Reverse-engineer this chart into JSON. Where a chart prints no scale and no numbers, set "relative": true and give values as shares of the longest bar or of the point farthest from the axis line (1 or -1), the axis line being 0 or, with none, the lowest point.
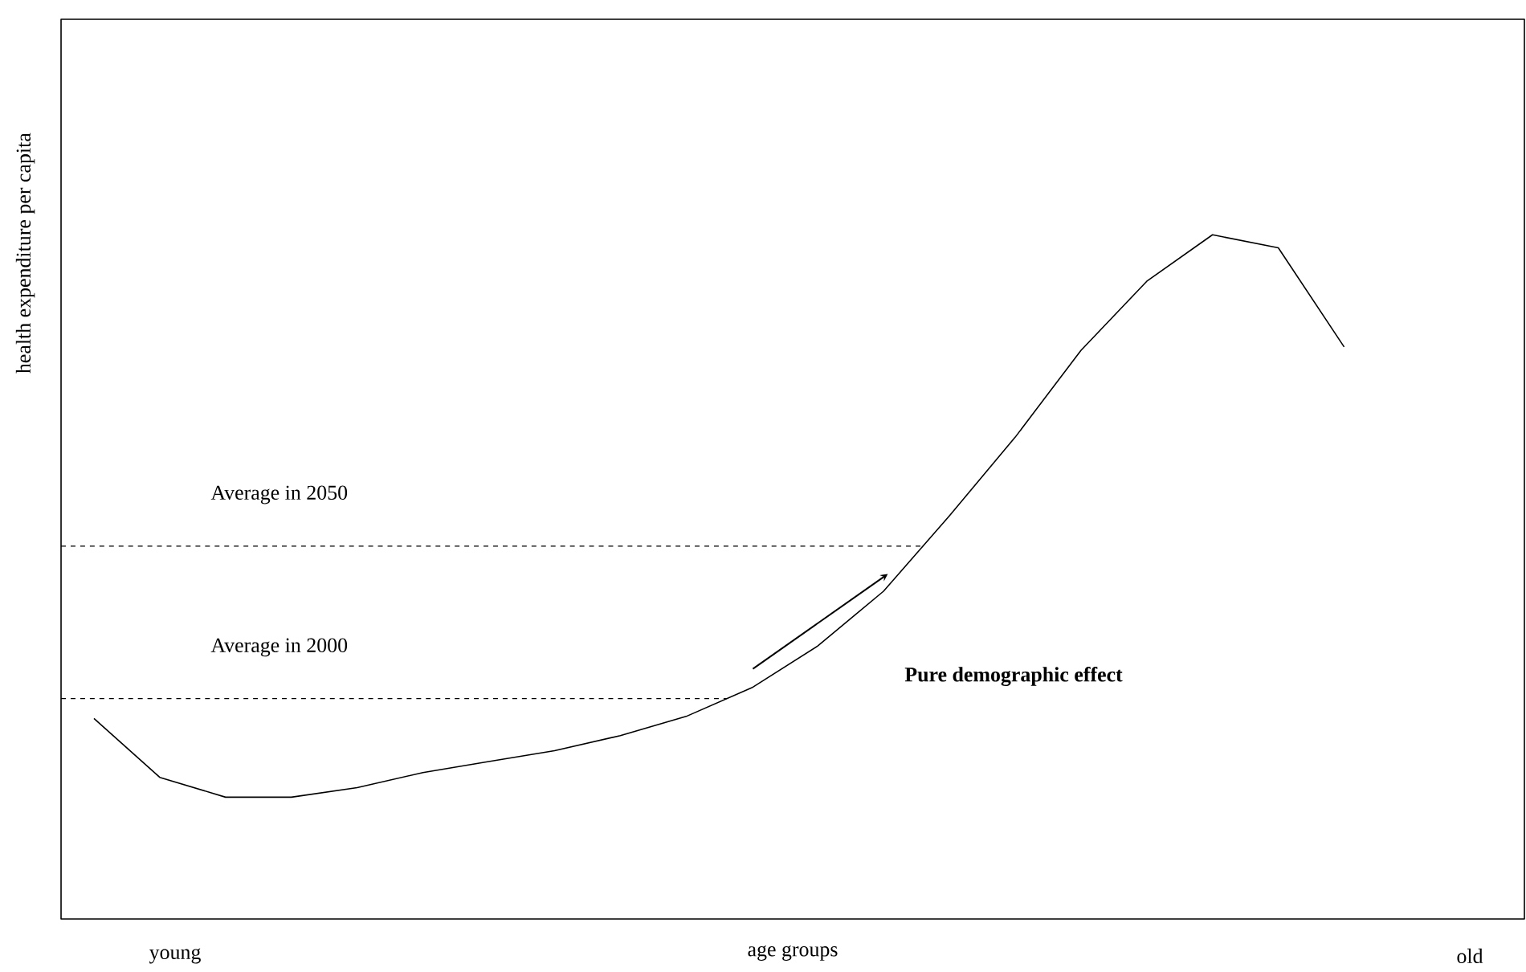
{
  "chart_data": {
    "type": "line",
    "relative": true,
    "xlabel": "age groups",
    "ylabel": "health expenditure per capita",
    "color": "#000000",
    "marker": "none",
    "line_style": "solid",
    "categories": [
      null,
      null,
      null,
      null,
      null,
      null,
      null,
      null,
      null,
      null,
      null,
      null,
      null,
      null,
      null,
      null,
      null,
      null,
      null,
      null
    ],
    "values": [
      0.293,
      0.207,
      0.178,
      0.178,
      0.192,
      0.214,
      0.23,
      0.246,
      0.268,
      0.296,
      0.338,
      0.399,
      0.479,
      0.589,
      0.704,
      0.831,
      0.932,
      1,
      0.981,
      0.836
    ],
    "ref_lines": [
      {
        "axis": "y",
        "value": 0.322,
        "label": "Average in 2000",
        "color": "#000000",
        "line_style": "dashed"
      },
      {
        "axis": "y",
        "value": 0.545,
        "label": "Average in 2050",
        "color": "#000000",
        "line_style": "dashed"
      }
    ],
    "annotations": [
      "young",
      "old",
      "Pure demographic effect"
    ]
  }
}
